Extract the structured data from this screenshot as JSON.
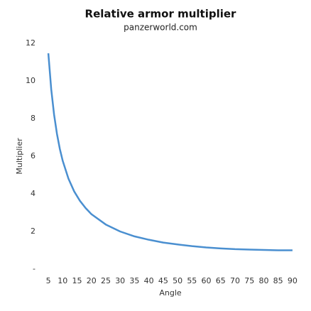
{
  "chart_data": {
    "type": "line",
    "title": "Relative armor multiplier",
    "subtitle": "panzerworld.com",
    "x_label": "Angle",
    "y_label": "Multiplier",
    "x": [
      5,
      6,
      7,
      8,
      9,
      10,
      12,
      14,
      16,
      18,
      20,
      25,
      30,
      35,
      40,
      45,
      50,
      55,
      60,
      65,
      70,
      75,
      80,
      85,
      90
    ],
    "series": [
      {
        "name": "Multiplier",
        "color": "#4a8fd0",
        "values": [
          11.47,
          9.57,
          8.21,
          7.19,
          6.39,
          5.76,
          4.81,
          4.13,
          3.63,
          3.24,
          2.92,
          2.37,
          2.0,
          1.74,
          1.56,
          1.41,
          1.31,
          1.22,
          1.15,
          1.1,
          1.06,
          1.04,
          1.02,
          1.0,
          1.0
        ]
      }
    ],
    "xlim": [
      3.5,
      92
    ],
    "ylim": [
      0,
      12
    ],
    "xticks": [
      5,
      10,
      15,
      20,
      25,
      30,
      35,
      40,
      45,
      50,
      55,
      60,
      65,
      70,
      75,
      80,
      85,
      90
    ],
    "yticks": [
      {
        "value": 0,
        "label": "-"
      },
      2,
      4,
      6,
      8,
      10,
      12
    ],
    "grid": false
  }
}
